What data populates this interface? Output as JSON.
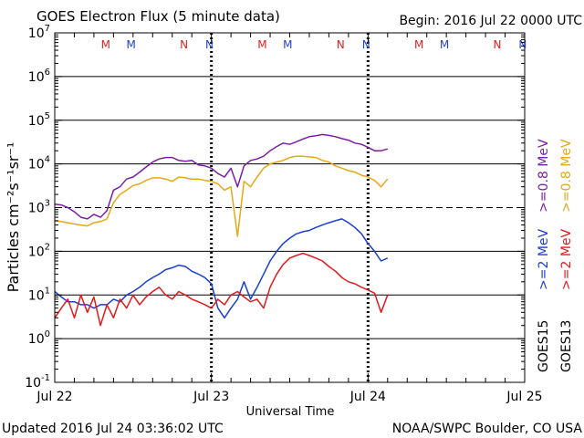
{
  "chart_data": {
    "type": "line",
    "title": "GOES Electron Flux (5 minute data)",
    "begin_label": "Begin: 2016 Jul 22 0000 UTC",
    "xlabel": "Universal Time",
    "ylabel": "Particles cm⁻²s⁻¹sr⁻¹",
    "y_scale": "log",
    "ylim": [
      0.1,
      10000000
    ],
    "xlim_hours": [
      0,
      72
    ],
    "x_ticks": [
      {
        "hour": 0,
        "label": "Jul 22"
      },
      {
        "hour": 24,
        "label": "Jul 23"
      },
      {
        "hour": 48,
        "label": "Jul 24"
      },
      {
        "hour": 72,
        "label": "Jul 25"
      }
    ],
    "y_ticks": [
      {
        "value": 0.1,
        "base": "10",
        "exp": "-1"
      },
      {
        "value": 1,
        "base": "10",
        "exp": "0"
      },
      {
        "value": 10,
        "base": "10",
        "exp": "1"
      },
      {
        "value": 100,
        "base": "10",
        "exp": "2"
      },
      {
        "value": 1000,
        "base": "10",
        "exp": "3"
      },
      {
        "value": 10000,
        "base": "10",
        "exp": "4"
      },
      {
        "value": 100000,
        "base": "10",
        "exp": "5"
      },
      {
        "value": 1000000,
        "base": "10",
        "exp": "6"
      },
      {
        "value": 10000000,
        "base": "10",
        "exp": "7"
      }
    ],
    "threshold_value": 1000,
    "noon_midnight_markers": [
      {
        "label": "M",
        "hour": 7.8,
        "color": "#dd2222"
      },
      {
        "label": "M",
        "hour": 11.7,
        "color": "#2244cc"
      },
      {
        "label": "N",
        "hour": 19.8,
        "color": "#dd2222"
      },
      {
        "label": "N",
        "hour": 23.7,
        "color": "#2244cc"
      },
      {
        "label": "M",
        "hour": 31.8,
        "color": "#dd2222"
      },
      {
        "label": "M",
        "hour": 35.7,
        "color": "#2244cc"
      },
      {
        "label": "N",
        "hour": 43.8,
        "color": "#dd2222"
      },
      {
        "label": "N",
        "hour": 47.7,
        "color": "#2244cc"
      },
      {
        "label": "M",
        "hour": 55.8,
        "color": "#dd2222"
      },
      {
        "label": "M",
        "hour": 59.7,
        "color": "#2244cc"
      },
      {
        "label": "N",
        "hour": 67.8,
        "color": "#dd2222"
      },
      {
        "label": "N",
        "hour": 71.7,
        "color": "#2244cc"
      }
    ],
    "dotted_verticals_hours": [
      24,
      48
    ],
    "series": [
      {
        "name": "GOES15 >=0.8 MeV",
        "color": "#7b1fa2",
        "x": [
          0,
          1,
          2,
          3,
          4,
          5,
          6,
          7,
          8,
          9,
          10,
          11,
          12,
          13,
          14,
          15,
          16,
          17,
          18,
          19,
          20,
          21,
          22,
          23,
          24,
          25,
          26,
          27,
          28,
          29,
          30,
          31,
          32,
          33,
          34,
          35,
          36,
          37,
          38,
          39,
          40,
          41,
          42,
          43,
          44,
          45,
          46,
          47,
          48,
          49,
          50,
          51
        ],
        "y": [
          1200,
          1150,
          1000,
          800,
          600,
          550,
          700,
          600,
          850,
          2500,
          3000,
          4500,
          5000,
          6500,
          8500,
          11000,
          13000,
          14000,
          14000,
          12000,
          11500,
          12000,
          9500,
          9000,
          8000,
          6000,
          5000,
          8000,
          3000,
          9000,
          12000,
          13000,
          15000,
          20000,
          25000,
          30000,
          28000,
          32000,
          37000,
          42000,
          44000,
          47000,
          45000,
          42000,
          38000,
          35000,
          30000,
          28000,
          24000,
          20000,
          20000,
          22000
        ]
      },
      {
        "name": "GOES13 >=0.8 MeV",
        "color": "#e6a817",
        "x": [
          0,
          1,
          2,
          3,
          4,
          5,
          6,
          7,
          8,
          9,
          10,
          11,
          12,
          13,
          14,
          15,
          16,
          17,
          18,
          19,
          20,
          21,
          22,
          23,
          24,
          25,
          26,
          27,
          28,
          29,
          30,
          31,
          32,
          33,
          34,
          35,
          36,
          37,
          38,
          39,
          40,
          41,
          42,
          43,
          44,
          45,
          46,
          47,
          48,
          49,
          50,
          51
        ],
        "y": [
          500,
          480,
          450,
          420,
          400,
          380,
          450,
          480,
          550,
          1300,
          2000,
          2500,
          3200,
          3500,
          4200,
          4800,
          4800,
          4500,
          4000,
          5000,
          4800,
          4500,
          4500,
          4200,
          4000,
          3500,
          2500,
          3000,
          220,
          4000,
          3000,
          5000,
          8000,
          10000,
          11000,
          12000,
          14000,
          15000,
          15000,
          14500,
          14000,
          12000,
          11000,
          9000,
          8000,
          7000,
          6500,
          5500,
          5000,
          4200,
          3000,
          4500
        ]
      },
      {
        "name": "GOES15 >=2 MeV",
        "color": "#1a3fcf",
        "x": [
          0,
          1,
          2,
          3,
          4,
          5,
          6,
          7,
          8,
          9,
          10,
          11,
          12,
          13,
          14,
          15,
          16,
          17,
          18,
          19,
          20,
          21,
          22,
          23,
          24,
          25,
          26,
          27,
          28,
          29,
          30,
          31,
          32,
          33,
          34,
          35,
          36,
          37,
          38,
          39,
          40,
          41,
          42,
          43,
          44,
          45,
          46,
          47,
          48,
          49,
          50,
          51
        ],
        "y": [
          12,
          9,
          7,
          7,
          6,
          6,
          5,
          6,
          6,
          8,
          7,
          10,
          12,
          15,
          20,
          25,
          30,
          38,
          42,
          48,
          45,
          35,
          30,
          25,
          18,
          5,
          3,
          5,
          8,
          20,
          8,
          15,
          30,
          60,
          100,
          150,
          200,
          250,
          280,
          300,
          350,
          400,
          450,
          500,
          550,
          450,
          350,
          250,
          150,
          100,
          60,
          70
        ]
      },
      {
        "name": "GOES13 >=2 MeV",
        "color": "#e31a1c",
        "x": [
          0,
          1,
          2,
          3,
          4,
          5,
          6,
          7,
          8,
          9,
          10,
          11,
          12,
          13,
          14,
          15,
          16,
          17,
          18,
          19,
          20,
          21,
          22,
          23,
          24,
          25,
          26,
          27,
          28,
          29,
          30,
          31,
          32,
          33,
          34,
          35,
          36,
          37,
          38,
          39,
          40,
          41,
          42,
          43,
          44,
          45,
          46,
          47,
          48,
          49,
          50,
          51
        ],
        "y": [
          3,
          5,
          8,
          3,
          10,
          4,
          9,
          2,
          6,
          3,
          8,
          5,
          10,
          6,
          9,
          12,
          15,
          10,
          8,
          12,
          10,
          8,
          7,
          6,
          5,
          8,
          6,
          10,
          12,
          9,
          7,
          8,
          5,
          15,
          30,
          50,
          70,
          80,
          90,
          80,
          70,
          60,
          45,
          35,
          25,
          20,
          18,
          15,
          13,
          11,
          4,
          10
        ]
      }
    ],
    "legend": [
      {
        "sat": "GOES15",
        "items": [
          {
            "text": ">=2 MeV",
            "color": "#1a3fcf"
          },
          {
            "text": ">=0.8 MeV",
            "color": "#7b1fa2"
          }
        ]
      },
      {
        "sat": "GOES13",
        "items": [
          {
            "text": ">=2 MeV",
            "color": "#e31a1c"
          },
          {
            "text": ">=0.8 MeV",
            "color": "#e6a817"
          }
        ]
      }
    ]
  },
  "footer": {
    "updated": "Updated 2016 Jul 24 03:36:02 UTC",
    "credit": "NOAA/SWPC Boulder, CO USA"
  }
}
